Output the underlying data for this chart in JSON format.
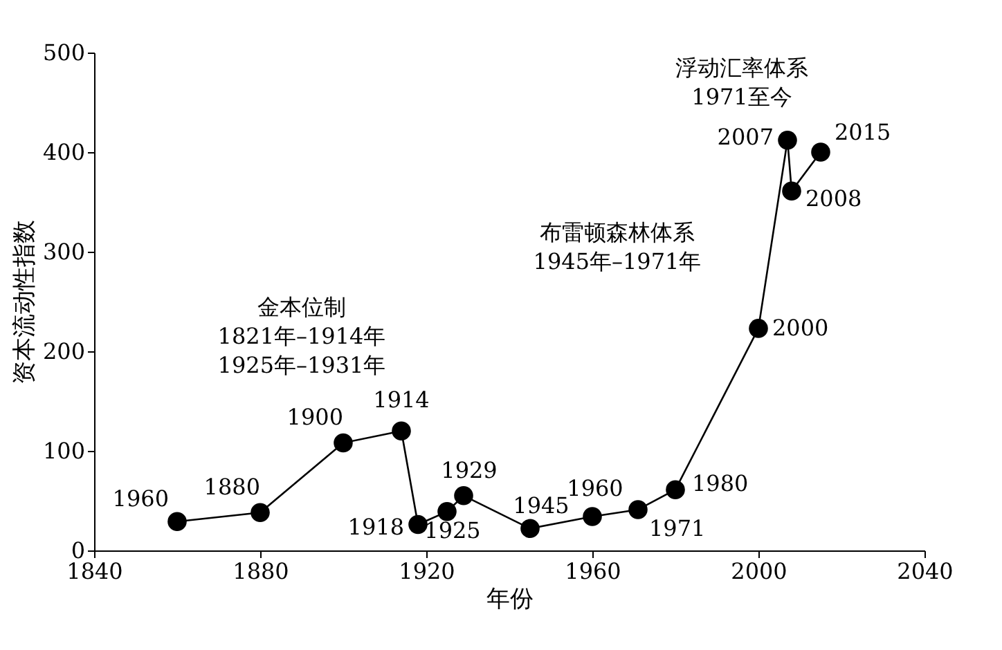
{
  "chart_data": {
    "type": "line",
    "xlabel": "年份",
    "ylabel": "资本流动性指数",
    "x": [
      1860,
      1880,
      1900,
      1914,
      1918,
      1925,
      1929,
      1945,
      1960,
      1971,
      1980,
      2000,
      2007,
      2008,
      2015
    ],
    "series": [
      {
        "color": "#000000",
        "values": [
          29,
          38,
          108,
          120,
          26,
          39,
          55,
          22,
          34,
          41,
          61,
          223,
          412,
          361,
          400
        ]
      }
    ],
    "xlim": [
      1840,
      2040
    ],
    "xticks": [
      1840,
      1880,
      1920,
      1960,
      2000,
      2040
    ],
    "ylim": [
      0,
      500
    ],
    "yticks": [
      0,
      100,
      200,
      300,
      400,
      500
    ],
    "grid": false,
    "marker": "circle",
    "line_style": "solid",
    "annotations": [
      {
        "text": "1960",
        "x": 1860,
        "y": 29
      },
      {
        "text": "1880",
        "x": 1880,
        "y": 38
      },
      {
        "text": "1900",
        "x": 1900,
        "y": 108
      },
      {
        "text": "1914",
        "x": 1914,
        "y": 120
      },
      {
        "text": "1918",
        "x": 1918,
        "y": 26
      },
      {
        "text": "1925",
        "x": 1925,
        "y": 39
      },
      {
        "text": "1929",
        "x": 1929,
        "y": 55
      },
      {
        "text": "1945",
        "x": 1945,
        "y": 22
      },
      {
        "text": "1960",
        "x": 1960,
        "y": 34
      },
      {
        "text": "1971",
        "x": 1971,
        "y": 41
      },
      {
        "text": "1980",
        "x": 1980,
        "y": 61
      },
      {
        "text": "2000",
        "x": 2000,
        "y": 223
      },
      {
        "text": "2007",
        "x": 2007,
        "y": 412
      },
      {
        "text": "2008",
        "x": 2008,
        "y": 361
      },
      {
        "text": "2015",
        "x": 2015,
        "y": 400
      },
      "金本位制\n1821年–1914年\n1925年–1931年",
      "布雷顿森林体系\n1945年–1971年",
      "浮动汇率体系\n1971至今"
    ]
  }
}
